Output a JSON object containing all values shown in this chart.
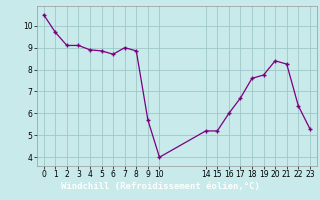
{
  "x": [
    0,
    1,
    2,
    3,
    4,
    5,
    6,
    7,
    8,
    9,
    10,
    14,
    15,
    16,
    17,
    18,
    19,
    20,
    21,
    22,
    23
  ],
  "y": [
    10.5,
    9.7,
    9.1,
    9.1,
    8.9,
    8.85,
    8.7,
    9.0,
    8.85,
    5.7,
    4.0,
    5.2,
    5.2,
    6.0,
    6.7,
    7.6,
    7.75,
    8.4,
    8.25,
    6.35,
    5.3
  ],
  "line_color": "#7B0080",
  "marker_color": "#7B0080",
  "bg_color": "#c8eaea",
  "grid_color": "#a0c8c8",
  "xlabel": "Windchill (Refroidissement éolien,°C)",
  "xlabel_bg": "#6633aa",
  "xlabel_fg": "#ffffff",
  "yticks": [
    4,
    5,
    6,
    7,
    8,
    9,
    10
  ],
  "xticks": [
    0,
    1,
    2,
    3,
    4,
    5,
    6,
    7,
    8,
    9,
    10,
    14,
    15,
    16,
    17,
    18,
    19,
    20,
    21,
    22,
    23
  ],
  "ylim": [
    3.6,
    10.9
  ],
  "xlim": [
    -0.6,
    23.6
  ]
}
